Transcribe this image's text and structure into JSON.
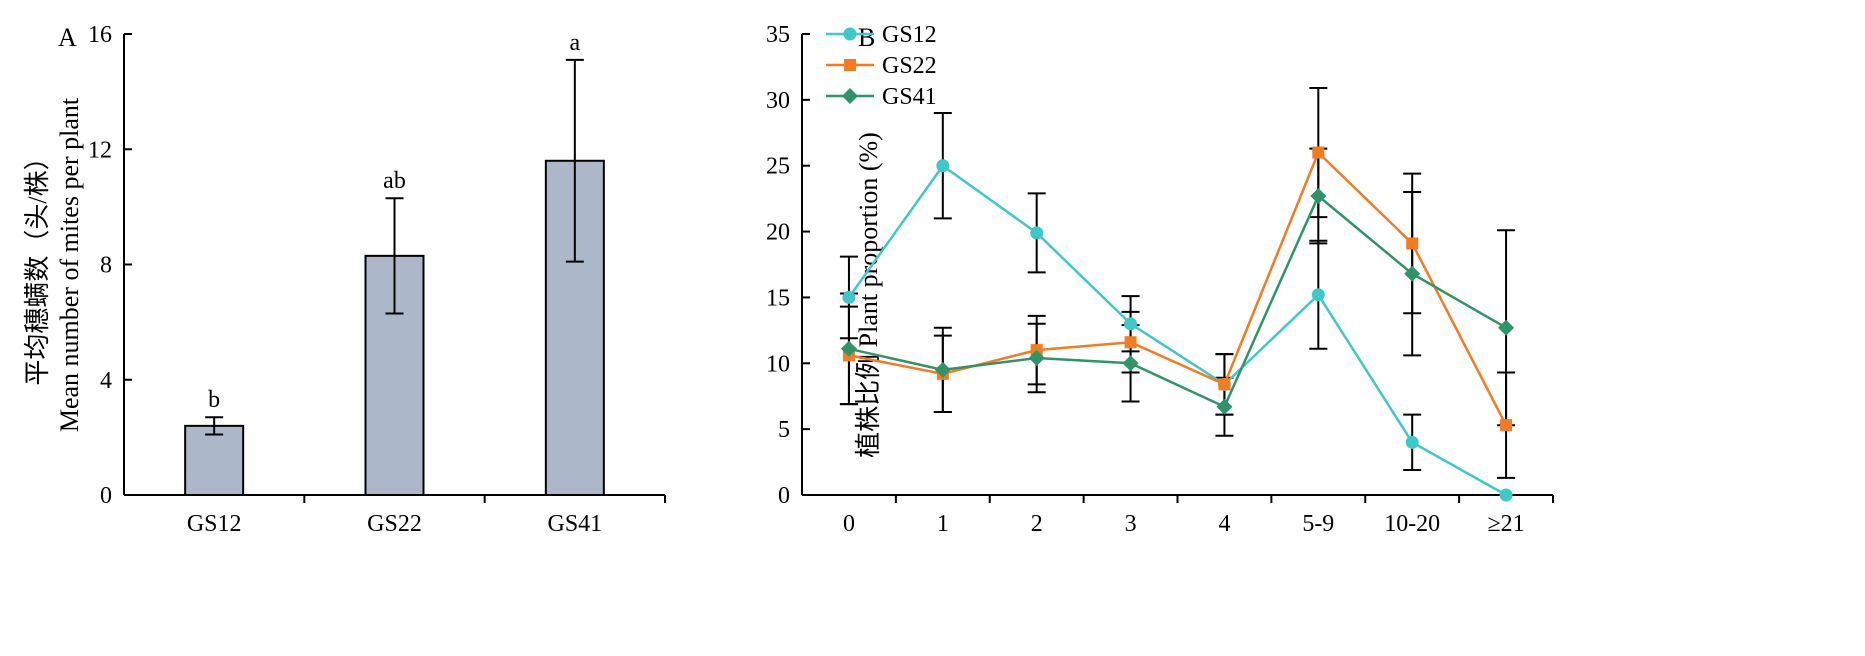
{
  "chart_data": [
    {
      "panel": "A",
      "type": "bar",
      "categories": [
        "GS12",
        "GS22",
        "GS41"
      ],
      "values": [
        2.4,
        8.3,
        11.6
      ],
      "errors": [
        0.3,
        2.0,
        3.5
      ],
      "significance": [
        "b",
        "ab",
        "a"
      ],
      "ylabel_cn": "平均穗螨数（头/株）",
      "ylabel": "Mean number of mites per plant",
      "ylim": [
        0,
        16
      ],
      "yticks": [
        "0",
        "4",
        "8",
        "12",
        "16"
      ],
      "bar_color": "#adb7ca",
      "grid": false
    },
    {
      "panel": "B",
      "type": "line",
      "categories": [
        "0",
        "1",
        "2",
        "3",
        "4",
        "5-9",
        "10-20",
        "≥21"
      ],
      "ylabel": "植株比例 Plant proportion (%)",
      "ylim": [
        0,
        35
      ],
      "yticks": [
        "0",
        "5",
        "10",
        "15",
        "20",
        "25",
        "30",
        "35"
      ],
      "legend_position": "top-left",
      "grid": false,
      "series": [
        {
          "name": "GS12",
          "color": "#3ec8c8",
          "marker": "circle",
          "values": [
            15.0,
            25.0,
            19.9,
            13.0,
            8.4,
            15.2,
            4.0,
            0.0
          ],
          "errors": [
            3.1,
            4.0,
            3.0,
            2.1,
            2.3,
            4.1,
            2.1,
            0.0
          ]
        },
        {
          "name": "GS22",
          "color": "#f47b20",
          "marker": "square",
          "values": [
            10.6,
            9.2,
            11.0,
            11.6,
            8.4,
            26.0,
            19.1,
            5.3
          ],
          "errors": [
            3.7,
            2.9,
            2.6,
            2.3,
            2.3,
            4.9,
            5.3,
            4.0
          ]
        },
        {
          "name": "GS41",
          "color": "#2f9467",
          "marker": "diamond",
          "values": [
            11.1,
            9.5,
            10.4,
            10.0,
            6.7,
            22.7,
            16.8,
            12.7
          ],
          "errors": [
            4.2,
            3.2,
            2.6,
            2.9,
            2.2,
            3.6,
            6.2,
            7.4
          ]
        }
      ]
    }
  ]
}
